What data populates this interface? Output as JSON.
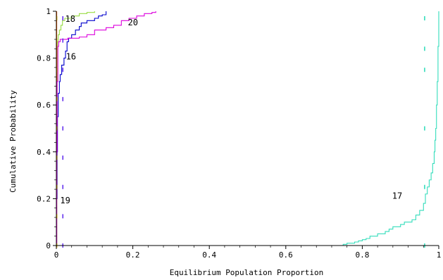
{
  "chart_data": {
    "type": "line",
    "xlabel": "Equilibrium Population Proportion",
    "ylabel": "Cumulative Probability",
    "xlim": [
      0,
      1
    ],
    "ylim": [
      0,
      1
    ],
    "grid": false,
    "x_ticks": [
      {
        "value": 0,
        "label": "0"
      },
      {
        "value": 0.2,
        "label": "0.2"
      },
      {
        "value": 0.4,
        "label": "0.4"
      },
      {
        "value": 0.6,
        "label": "0.6"
      },
      {
        "value": 0.8,
        "label": "0.8"
      },
      {
        "value": 1,
        "label": "1"
      }
    ],
    "y_ticks": [
      {
        "value": 0,
        "label": "0"
      },
      {
        "value": 0.2,
        "label": "0.2"
      },
      {
        "value": 0.4,
        "label": "0.4"
      },
      {
        "value": 0.6,
        "label": "0.6"
      },
      {
        "value": 0.8,
        "label": "0.8"
      },
      {
        "value": 1,
        "label": "1"
      }
    ],
    "series": [
      {
        "id": "s16",
        "label": "16",
        "label_at": [
          0.025,
          0.795
        ],
        "color": "#0000cc",
        "points": [
          [
            0,
            0
          ],
          [
            0.001,
            0.2
          ],
          [
            0.002,
            0.4
          ],
          [
            0.003,
            0.55
          ],
          [
            0.005,
            0.65
          ],
          [
            0.008,
            0.7
          ],
          [
            0.01,
            0.73
          ],
          [
            0.014,
            0.77
          ],
          [
            0.02,
            0.8
          ],
          [
            0.024,
            0.83
          ],
          [
            0.028,
            0.87
          ],
          [
            0.032,
            0.885
          ],
          [
            0.04,
            0.9
          ],
          [
            0.05,
            0.92
          ],
          [
            0.06,
            0.935
          ],
          [
            0.065,
            0.95
          ],
          [
            0.08,
            0.96
          ],
          [
            0.1,
            0.97
          ],
          [
            0.11,
            0.98
          ],
          [
            0.12,
            0.985
          ],
          [
            0.13,
            1.0
          ]
        ]
      },
      {
        "id": "s18",
        "label": "18",
        "label_at": [
          0.023,
          0.955
        ],
        "color": "#99dd44",
        "points": [
          [
            0,
            0
          ],
          [
            0.001,
            0.5
          ],
          [
            0.002,
            0.8
          ],
          [
            0.003,
            0.87
          ],
          [
            0.005,
            0.9
          ],
          [
            0.008,
            0.92
          ],
          [
            0.012,
            0.94
          ],
          [
            0.016,
            0.96
          ],
          [
            0.022,
            0.97
          ],
          [
            0.04,
            0.98
          ],
          [
            0.06,
            0.99
          ],
          [
            0.08,
            0.995
          ],
          [
            0.1,
            1.0
          ]
        ]
      },
      {
        "id": "s19",
        "label": "19",
        "label_at": [
          0.01,
          0.18
        ],
        "color": "#ff6600",
        "points": [
          [
            0,
            0
          ],
          [
            0.001,
            1.0
          ]
        ]
      },
      {
        "id": "s20",
        "label": "20",
        "label_at": [
          0.187,
          0.94
        ],
        "color": "#dd00dd",
        "points": [
          [
            0,
            0
          ],
          [
            0.001,
            0.4
          ],
          [
            0.002,
            0.7
          ],
          [
            0.004,
            0.85
          ],
          [
            0.006,
            0.87
          ],
          [
            0.01,
            0.88
          ],
          [
            0.03,
            0.885
          ],
          [
            0.06,
            0.89
          ],
          [
            0.08,
            0.9
          ],
          [
            0.1,
            0.92
          ],
          [
            0.13,
            0.93
          ],
          [
            0.15,
            0.94
          ],
          [
            0.17,
            0.96
          ],
          [
            0.19,
            0.97
          ],
          [
            0.21,
            0.98
          ],
          [
            0.23,
            0.99
          ],
          [
            0.25,
            0.995
          ],
          [
            0.26,
            1.0
          ]
        ]
      },
      {
        "id": "s17",
        "label": "17",
        "label_at": [
          0.878,
          0.2
        ],
        "color": "#33ddbb",
        "points": [
          [
            0.74,
            0
          ],
          [
            0.75,
            0.005
          ],
          [
            0.76,
            0.01
          ],
          [
            0.78,
            0.015
          ],
          [
            0.79,
            0.02
          ],
          [
            0.8,
            0.025
          ],
          [
            0.81,
            0.03
          ],
          [
            0.82,
            0.04
          ],
          [
            0.84,
            0.05
          ],
          [
            0.86,
            0.06
          ],
          [
            0.87,
            0.07
          ],
          [
            0.88,
            0.08
          ],
          [
            0.9,
            0.09
          ],
          [
            0.91,
            0.1
          ],
          [
            0.93,
            0.11
          ],
          [
            0.94,
            0.13
          ],
          [
            0.95,
            0.15
          ],
          [
            0.96,
            0.18
          ],
          [
            0.965,
            0.22
          ],
          [
            0.97,
            0.25
          ],
          [
            0.975,
            0.28
          ],
          [
            0.98,
            0.31
          ],
          [
            0.984,
            0.35
          ],
          [
            0.988,
            0.4
          ],
          [
            0.99,
            0.45
          ],
          [
            0.992,
            0.5
          ],
          [
            0.994,
            0.6
          ],
          [
            0.996,
            0.7
          ],
          [
            0.998,
            0.85
          ],
          [
            1.0,
            1.0
          ]
        ]
      }
    ],
    "reference_markers": [
      {
        "id": "ref-16",
        "x": 0.017,
        "color": "#6633ee",
        "y": [
          0.0,
          0.125,
          0.25,
          0.375,
          0.5,
          0.625,
          0.75,
          0.875,
          0.97
        ]
      },
      {
        "id": "ref-17",
        "x": 0.963,
        "color": "#33ddbb",
        "y": [
          0.0,
          0.25,
          0.5,
          0.75,
          0.84,
          0.97
        ]
      },
      {
        "id": "ref-19",
        "x": 0.001,
        "color": "#ddaa00",
        "y": [
          0.0,
          0.125,
          0.25,
          0.375,
          0.5,
          0.625,
          0.75,
          0.875,
          0.97
        ]
      }
    ]
  }
}
